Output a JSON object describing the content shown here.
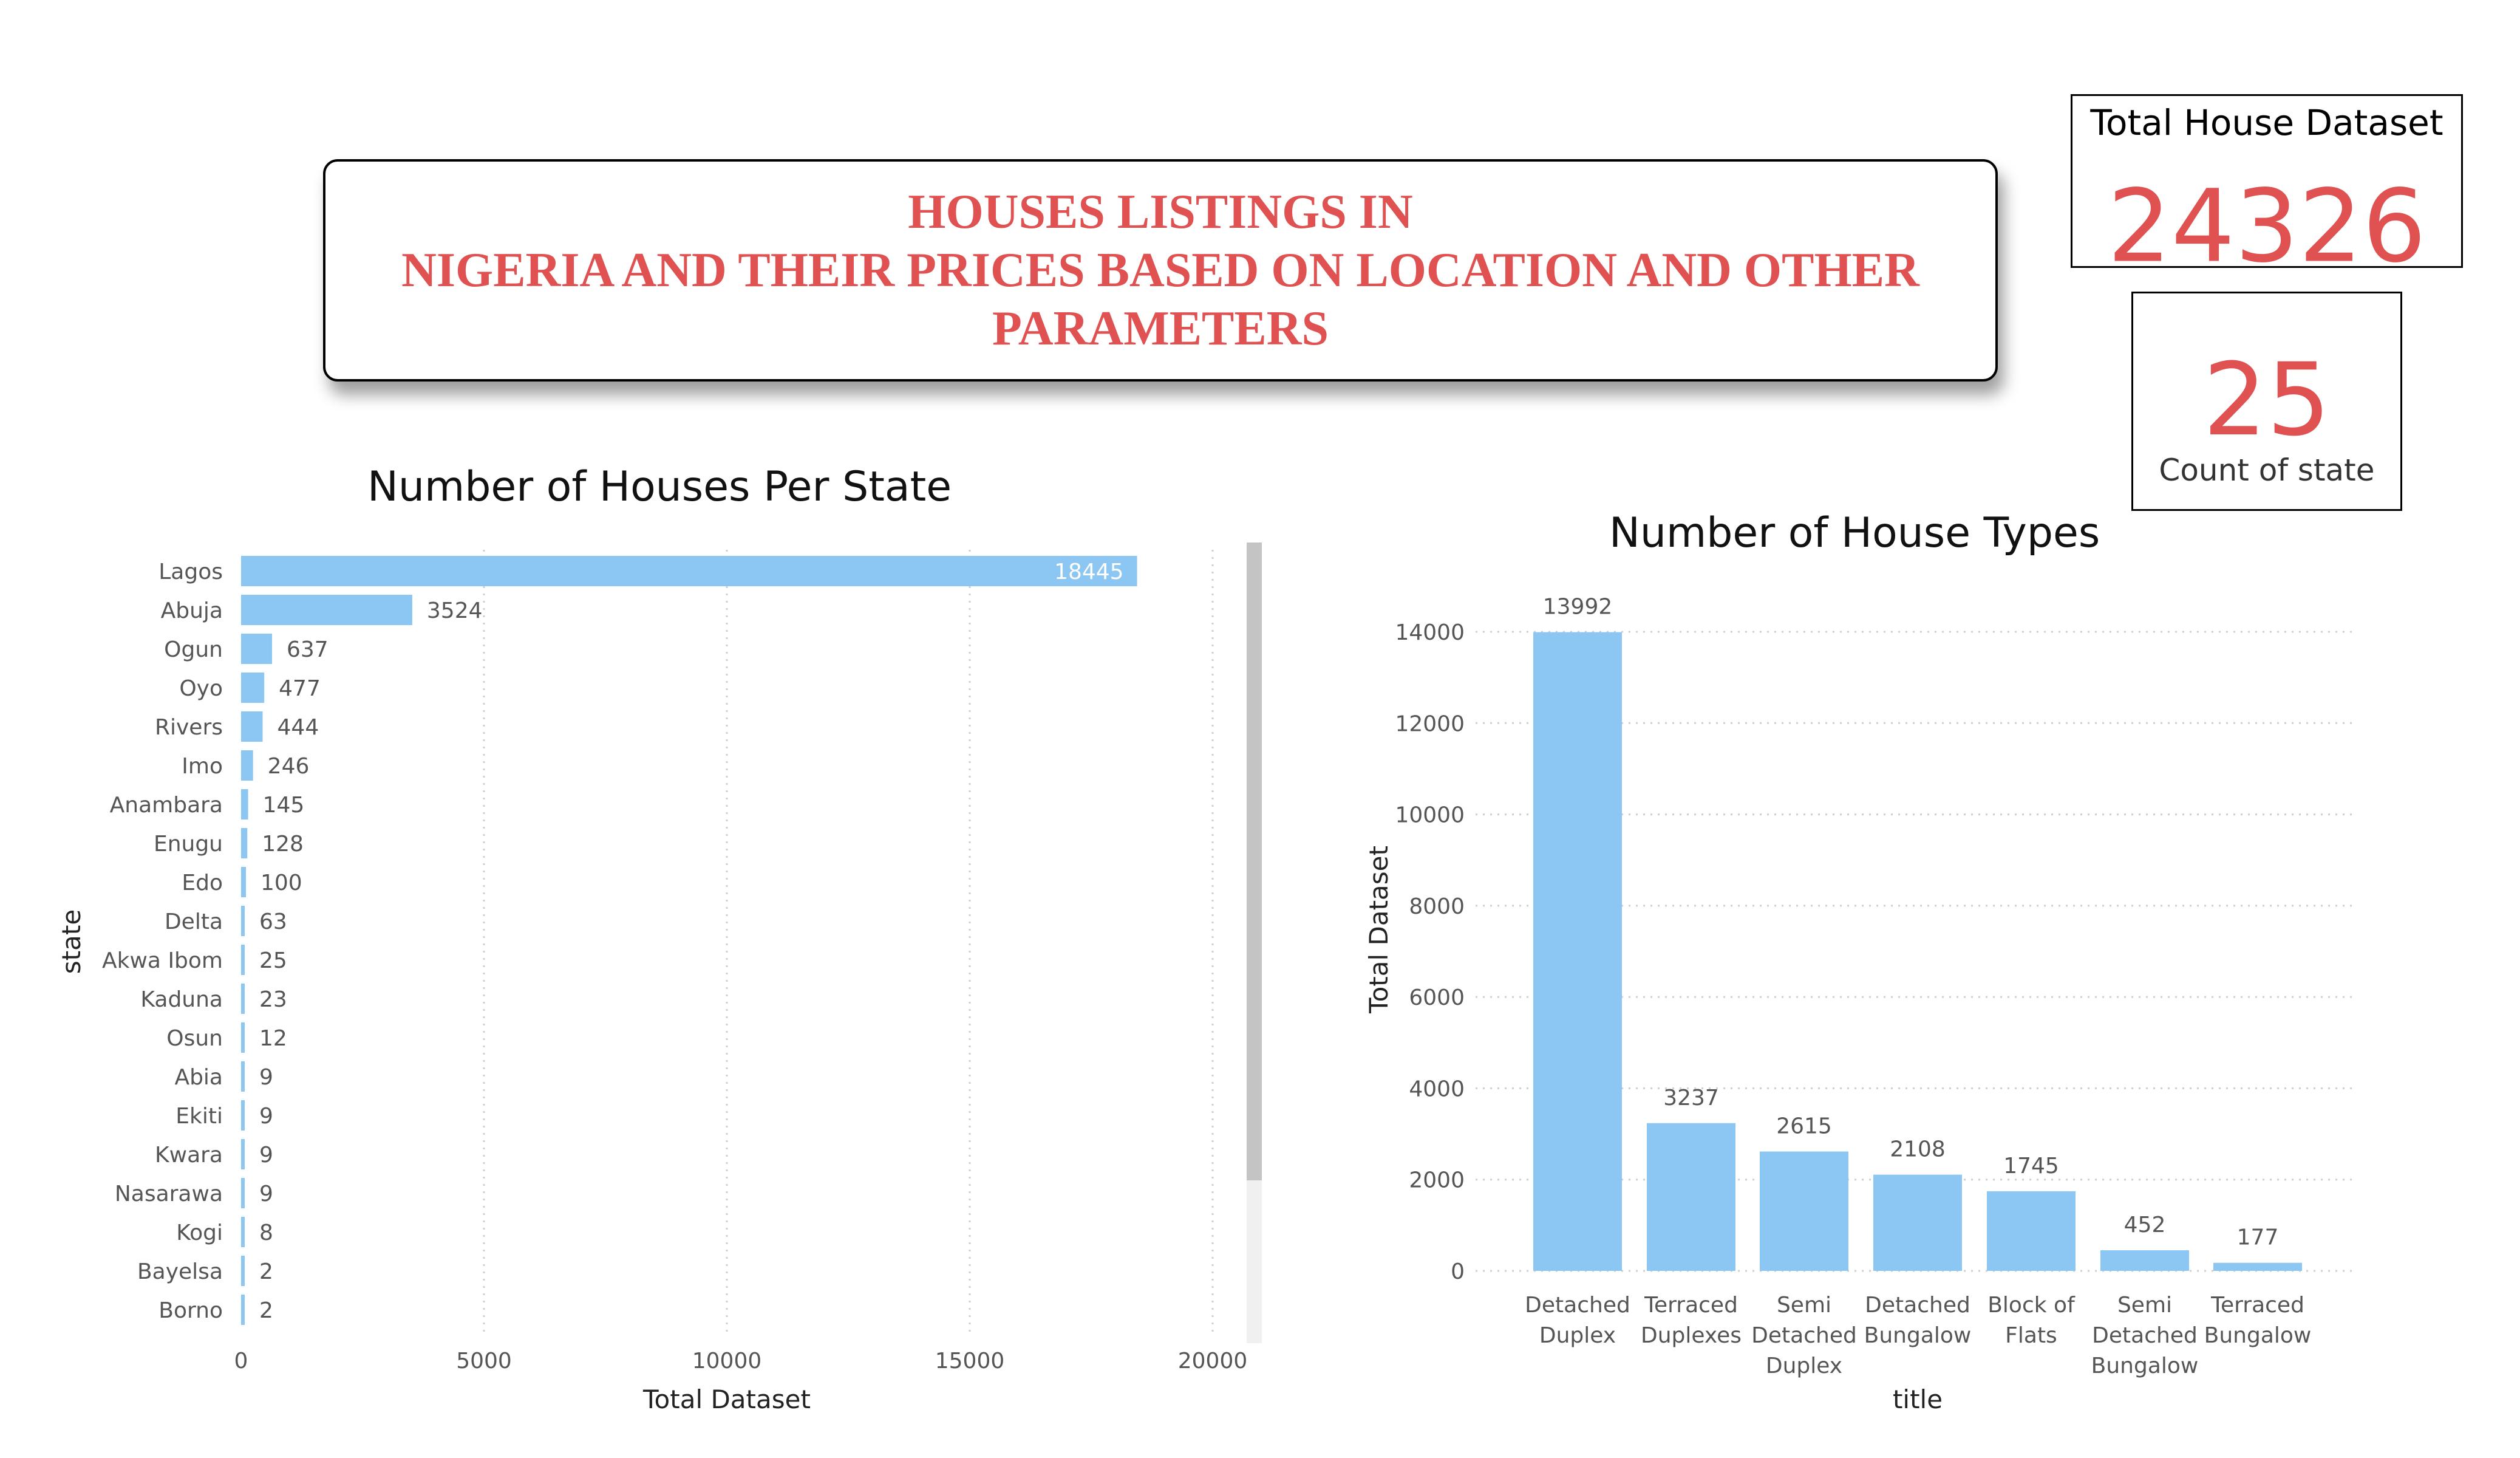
{
  "title_lines": [
    "HOUSES LISTINGS IN",
    "NIGERIA AND THEIR PRICES BASED ON LOCATION AND OTHER",
    "PARAMETERS"
  ],
  "card_total": {
    "label": "Total House Dataset",
    "value": "24326"
  },
  "card_states": {
    "label": "Count of state",
    "value": "25"
  },
  "colors": {
    "bar": "#8cc6f2",
    "accent": "#e05252"
  },
  "chart_data": [
    {
      "type": "bar",
      "orientation": "horizontal",
      "title": "Number of Houses Per State",
      "xlabel": "Total Dataset",
      "ylabel": "state",
      "xlim": [
        0,
        20000
      ],
      "xticks": [
        0,
        5000,
        10000,
        15000,
        20000
      ],
      "grid": true,
      "categories": [
        "Lagos",
        "Abuja",
        "Ogun",
        "Oyo",
        "Rivers",
        "Imo",
        "Anambara",
        "Enugu",
        "Edo",
        "Delta",
        "Akwa Ibom",
        "Kaduna",
        "Osun",
        "Abia",
        "Ekiti",
        "Kwara",
        "Nasarawa",
        "Kogi",
        "Bayelsa",
        "Borno"
      ],
      "values": [
        18445,
        3524,
        637,
        477,
        444,
        246,
        145,
        128,
        100,
        63,
        25,
        23,
        12,
        9,
        9,
        9,
        9,
        8,
        2,
        2
      ]
    },
    {
      "type": "bar",
      "orientation": "vertical",
      "title": "Number of House Types",
      "xlabel": "title",
      "ylabel": "Total Dataset",
      "ylim": [
        0,
        14000
      ],
      "yticks": [
        0,
        2000,
        4000,
        6000,
        8000,
        10000,
        12000,
        14000
      ],
      "grid": true,
      "categories": [
        [
          "Detached",
          "Duplex"
        ],
        [
          "Terraced",
          "Duplexes"
        ],
        [
          "Semi",
          "Detached",
          "Duplex"
        ],
        [
          "Detached",
          "Bungalow"
        ],
        [
          "Block of",
          "Flats"
        ],
        [
          "Semi",
          "Detached",
          "Bungalow"
        ],
        [
          "Terraced",
          "Bungalow"
        ]
      ],
      "values": [
        13992,
        3237,
        2615,
        2108,
        1745,
        452,
        177
      ]
    }
  ]
}
